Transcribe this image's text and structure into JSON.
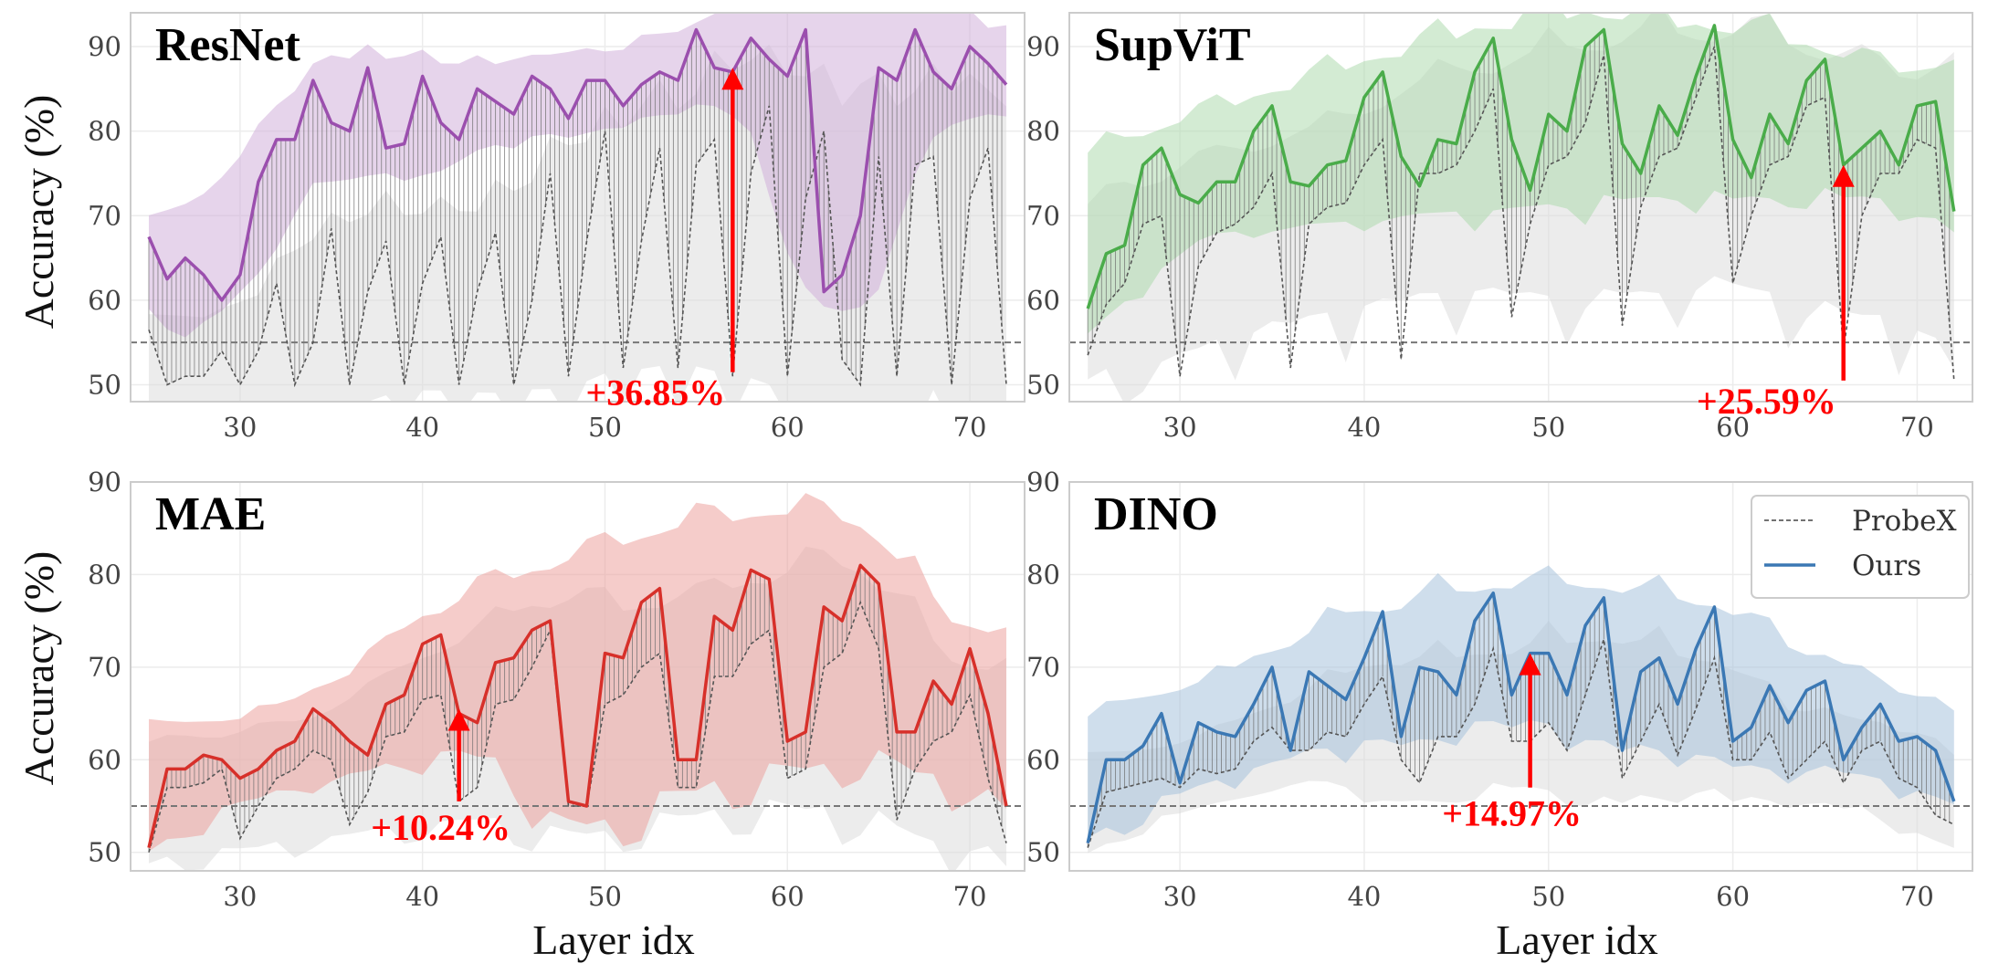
{
  "figure": {
    "xlabel": "Layer idx",
    "ylabel": "Accuracy (%)",
    "legend": {
      "placement": "top-right of DINO panel",
      "entries": [
        "ProbeX",
        "Ours"
      ]
    }
  },
  "chart_data": [
    {
      "type": "line",
      "title": "ResNet",
      "color": "#9b4fae",
      "xlim": [
        24,
        73
      ],
      "ylim": [
        48,
        94
      ],
      "xticks": [
        30,
        40,
        50,
        60,
        70
      ],
      "yticks": [
        50,
        60,
        70,
        80,
        90
      ],
      "baseline": 55,
      "grid": true,
      "x": [
        25,
        26,
        27,
        28,
        29,
        30,
        31,
        32,
        33,
        34,
        35,
        36,
        37,
        38,
        39,
        40,
        41,
        42,
        43,
        44,
        45,
        46,
        47,
        48,
        49,
        50,
        51,
        52,
        53,
        54,
        55,
        56,
        57,
        58,
        59,
        60,
        61,
        62,
        63,
        64,
        65,
        66,
        67,
        68,
        69,
        70,
        71,
        72
      ],
      "series": [
        {
          "name": "ProbeX",
          "values": [
            56.5,
            50,
            51,
            51,
            54,
            50,
            54,
            62,
            50,
            55,
            68.5,
            50,
            61,
            67,
            50,
            62,
            67.5,
            50,
            61,
            68,
            50,
            60,
            75,
            51,
            67,
            80,
            52,
            67,
            78,
            52,
            76,
            79,
            51,
            75,
            83,
            51,
            72,
            80,
            53,
            50,
            77,
            51,
            76,
            77,
            50,
            72,
            78,
            50
          ]
        },
        {
          "name": "Ours",
          "values": [
            67.5,
            62.5,
            65,
            63,
            60,
            63,
            74,
            79,
            79,
            86,
            81,
            80,
            87.5,
            78,
            78.5,
            86.5,
            81,
            79,
            85,
            83.5,
            82,
            86.5,
            85,
            81.5,
            86,
            86,
            83,
            85.5,
            87,
            86,
            92,
            87.5,
            87,
            91,
            88.5,
            86.5,
            92,
            61,
            63,
            70,
            87.5,
            86,
            92,
            87,
            85,
            90,
            88,
            85.5
          ]
        }
      ],
      "annotation": {
        "text": "+36.85%",
        "x": 57,
        "from": 51.5,
        "to": 87.5
      }
    },
    {
      "type": "line",
      "title": "SupViT",
      "color": "#4aac4a",
      "xlim": [
        24,
        73
      ],
      "ylim": [
        48,
        94
      ],
      "xticks": [
        30,
        40,
        50,
        60,
        70
      ],
      "yticks": [
        50,
        60,
        70,
        80,
        90
      ],
      "baseline": 55,
      "grid": true,
      "x": [
        25,
        26,
        27,
        28,
        29,
        30,
        31,
        32,
        33,
        34,
        35,
        36,
        37,
        38,
        39,
        40,
        41,
        42,
        43,
        44,
        45,
        46,
        47,
        48,
        49,
        50,
        51,
        52,
        53,
        54,
        55,
        56,
        57,
        58,
        59,
        60,
        61,
        62,
        63,
        64,
        65,
        66,
        67,
        68,
        69,
        70,
        71,
        72
      ],
      "series": [
        {
          "name": "ProbeX",
          "values": [
            53.5,
            59.5,
            62,
            69,
            70,
            51,
            64,
            68,
            69,
            71,
            75,
            52,
            69,
            71,
            71.5,
            76,
            79,
            53,
            75,
            75,
            76,
            80,
            85,
            58,
            69,
            76,
            77,
            81,
            89,
            57,
            71,
            77,
            78,
            84,
            90,
            62,
            70,
            76,
            77,
            83,
            84,
            54,
            70,
            75,
            75,
            79,
            78,
            50.5
          ]
        },
        {
          "name": "Ours",
          "values": [
            59,
            65.5,
            66.5,
            76,
            78,
            72.5,
            71.5,
            74,
            74,
            80,
            83,
            74,
            73.5,
            76,
            76.5,
            84,
            87,
            77,
            73.5,
            79,
            78.5,
            87,
            91,
            79,
            73,
            82,
            80,
            90,
            92,
            78.5,
            75,
            83,
            79.5,
            86.5,
            92.5,
            79,
            74.5,
            82,
            78.5,
            86,
            88.5,
            76,
            78,
            80,
            76,
            83,
            83.5,
            70.5
          ]
        }
      ],
      "annotation": {
        "text": "+25.59%",
        "x": 66,
        "from": 50.5,
        "to": 76
      }
    },
    {
      "type": "line",
      "title": "MAE",
      "color": "#d7302a",
      "xlim": [
        24,
        73
      ],
      "ylim": [
        48,
        90
      ],
      "xticks": [
        30,
        40,
        50,
        60,
        70
      ],
      "yticks": [
        50,
        60,
        70,
        80,
        90
      ],
      "baseline": 55,
      "grid": true,
      "x": [
        25,
        26,
        27,
        28,
        29,
        30,
        31,
        32,
        33,
        34,
        35,
        36,
        37,
        38,
        39,
        40,
        41,
        42,
        43,
        44,
        45,
        46,
        47,
        48,
        49,
        50,
        51,
        52,
        53,
        54,
        55,
        56,
        57,
        58,
        59,
        60,
        61,
        62,
        63,
        64,
        65,
        66,
        67,
        68,
        69,
        70,
        71,
        72
      ],
      "series": [
        {
          "name": "ProbeX",
          "values": [
            50,
            57,
            57,
            57.5,
            59,
            51.5,
            55,
            58,
            59,
            61,
            60,
            53,
            56.5,
            62.5,
            63,
            66.5,
            67,
            55.5,
            57,
            66,
            66.5,
            70,
            74,
            55,
            55,
            66,
            67,
            70,
            71.5,
            57,
            57,
            69,
            69,
            72.5,
            74,
            58,
            59,
            70,
            71.5,
            77,
            72,
            53.5,
            59,
            62,
            63,
            67,
            58,
            51
          ]
        },
        {
          "name": "Ours",
          "values": [
            50.5,
            59,
            59,
            60.5,
            60,
            58,
            59,
            61,
            62,
            65.5,
            64,
            62,
            60.5,
            66,
            67,
            72.5,
            73.5,
            65,
            64,
            70.5,
            71,
            74,
            75,
            55.5,
            55,
            71.5,
            71,
            77,
            78.5,
            60,
            60,
            75.5,
            74,
            80.5,
            79.5,
            62,
            63,
            76.5,
            75,
            81,
            79,
            63,
            63,
            68.5,
            66,
            72,
            65,
            55
          ]
        }
      ],
      "annotation": {
        "text": "+10.24%",
        "x": 42,
        "from": 55.5,
        "to": 65.5
      }
    },
    {
      "type": "line",
      "title": "DINO",
      "color": "#3b78b4",
      "xlim": [
        24,
        73
      ],
      "ylim": [
        48,
        90
      ],
      "xticks": [
        30,
        40,
        50,
        60,
        70
      ],
      "yticks": [
        50,
        60,
        70,
        80,
        90
      ],
      "baseline": 55,
      "grid": true,
      "x": [
        25,
        26,
        27,
        28,
        29,
        30,
        31,
        32,
        33,
        34,
        35,
        36,
        37,
        38,
        39,
        40,
        41,
        42,
        43,
        44,
        45,
        46,
        47,
        48,
        49,
        50,
        51,
        52,
        53,
        54,
        55,
        56,
        57,
        58,
        59,
        60,
        61,
        62,
        63,
        64,
        65,
        66,
        67,
        68,
        69,
        70,
        71,
        72
      ],
      "series": [
        {
          "name": "ProbeX",
          "values": [
            50.5,
            56.5,
            57,
            57.5,
            58,
            57,
            59,
            58.5,
            59,
            62,
            63.5,
            61,
            61,
            63,
            62.5,
            66,
            69,
            60,
            57.5,
            62.5,
            62.5,
            66,
            72,
            62,
            62,
            64,
            61,
            67,
            73,
            58,
            62,
            66,
            60.5,
            65.5,
            71,
            60,
            60,
            63,
            58,
            60,
            62,
            57.5,
            61,
            62,
            58,
            57,
            54,
            53
          ]
        },
        {
          "name": "Ours",
          "values": [
            51,
            60,
            60,
            61.5,
            65,
            57.5,
            64,
            63,
            62.5,
            66,
            70,
            61,
            69.5,
            68,
            66.5,
            71,
            76,
            62.5,
            70,
            69.5,
            67,
            75,
            78,
            67,
            71.5,
            71.5,
            67,
            74.5,
            77.5,
            61,
            69.5,
            71,
            66,
            72,
            76.5,
            62,
            63.5,
            68,
            64,
            67.5,
            68.5,
            60,
            63.5,
            66,
            62,
            62.5,
            61,
            55.5
          ]
        }
      ],
      "annotation": {
        "text": "+14.97%",
        "x": 49,
        "from": 57,
        "to": 71.5
      }
    }
  ]
}
